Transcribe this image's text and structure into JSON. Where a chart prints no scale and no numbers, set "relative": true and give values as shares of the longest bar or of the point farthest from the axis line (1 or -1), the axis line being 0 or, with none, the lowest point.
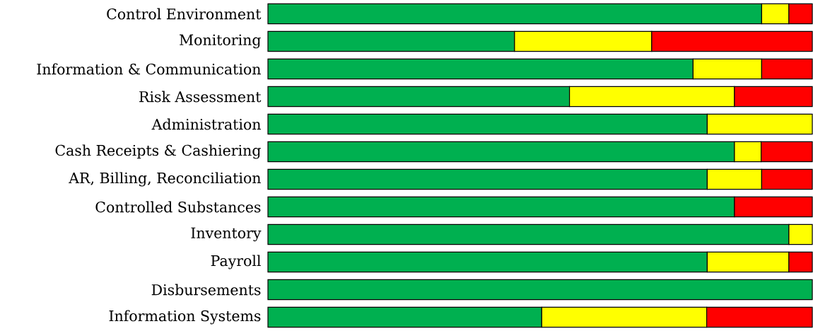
{
  "chart_data": {
    "type": "bar",
    "orientation": "horizontal",
    "stacked": true,
    "relative": true,
    "categories": [
      "Control Environment",
      "Monitoring",
      "Information & Communication",
      "Risk Assessment",
      "Administration",
      "Cash Receipts & Cashiering",
      "AR, Billing, Reconciliation",
      "Controlled Substances",
      "Inventory",
      "Payroll",
      "Disbursements",
      "Information Systems"
    ],
    "series": [
      {
        "color": "#00b050",
        "values": [
          0.907,
          0.453,
          0.781,
          0.554,
          0.807,
          0.857,
          0.807,
          0.857,
          0.957,
          0.807,
          1,
          0.503
        ]
      },
      {
        "color": "#ffff00",
        "values": [
          0.05,
          0.252,
          0.126,
          0.303,
          0.193,
          0.049,
          0.1,
          null,
          0.043,
          0.15,
          null,
          0.303
        ]
      },
      {
        "color": "#ff0000",
        "values": [
          0.043,
          0.295,
          0.093,
          0.143,
          null,
          0.094,
          0.093,
          0.143,
          null,
          0.043,
          null,
          0.194
        ]
      }
    ]
  }
}
